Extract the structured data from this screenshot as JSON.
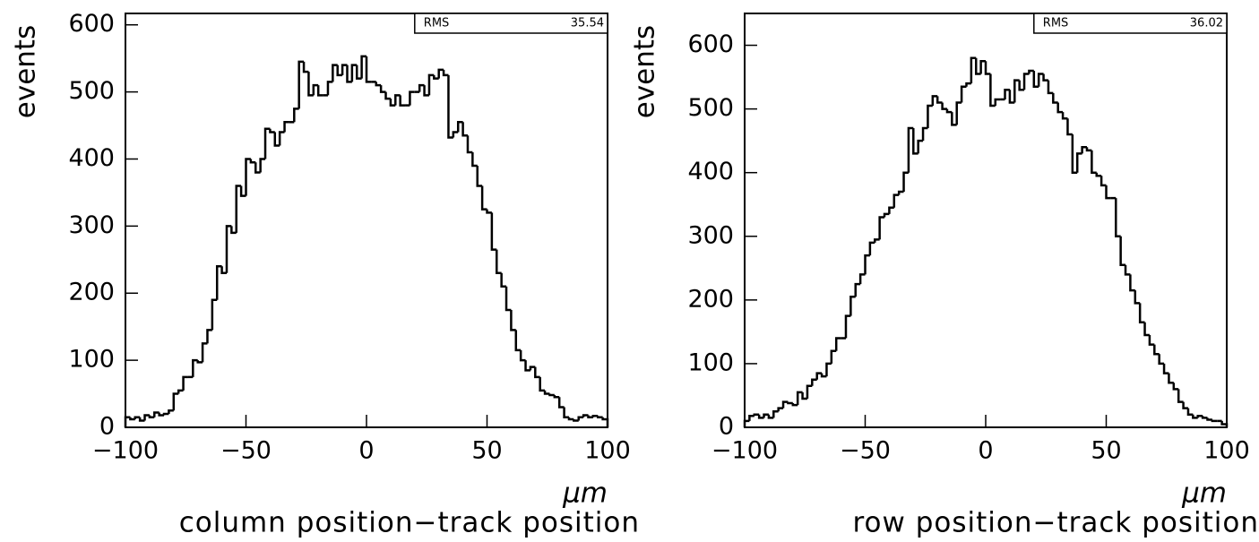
{
  "chart_data": [
    {
      "type": "histogram",
      "xlabel": "column position−track position",
      "xunit": "μm",
      "ylabel": "events",
      "stats": {
        "label": "RMS",
        "value": 35.54
      },
      "bins": [
        -100,
        -98,
        -96,
        -94,
        -92,
        -90,
        -88,
        -86,
        -84,
        -82,
        -80,
        -78,
        -76,
        -74,
        -72,
        -70,
        -68,
        -66,
        -64,
        -62,
        -60,
        -58,
        -56,
        -54,
        -52,
        -50,
        -48,
        -46,
        -44,
        -42,
        -40,
        -38,
        -36,
        -34,
        -32,
        -30,
        -28,
        -26,
        -24,
        -22,
        -20,
        -18,
        -16,
        -14,
        -12,
        -10,
        -8,
        -6,
        -4,
        -2,
        0,
        2,
        4,
        6,
        8,
        10,
        12,
        14,
        16,
        18,
        20,
        22,
        24,
        26,
        28,
        30,
        32,
        34,
        36,
        38,
        40,
        42,
        44,
        46,
        48,
        50,
        52,
        54,
        56,
        58,
        60,
        62,
        64,
        66,
        68,
        70,
        72,
        74,
        76,
        78,
        80,
        82,
        84,
        86,
        88,
        90,
        92,
        94,
        96,
        98,
        100
      ],
      "values": [
        15,
        12,
        15,
        10,
        18,
        15,
        22,
        18,
        20,
        25,
        50,
        55,
        75,
        75,
        100,
        97,
        125,
        145,
        190,
        240,
        230,
        300,
        290,
        360,
        345,
        400,
        395,
        380,
        400,
        445,
        440,
        420,
        440,
        455,
        455,
        475,
        545,
        530,
        495,
        510,
        495,
        495,
        515,
        540,
        525,
        540,
        515,
        540,
        520,
        553,
        515,
        515,
        510,
        500,
        490,
        480,
        495,
        480,
        480,
        500,
        500,
        510,
        495,
        525,
        520,
        533,
        525,
        432,
        440,
        455,
        435,
        410,
        390,
        360,
        325,
        320,
        265,
        230,
        210,
        175,
        145,
        115,
        100,
        85,
        90,
        75,
        55,
        50,
        48,
        45,
        30,
        15,
        12,
        10,
        15,
        18,
        15,
        17,
        15,
        12
      ],
      "color": "#000000",
      "xlim": [
        -100,
        100
      ],
      "xticks": [
        {
          "value": -100,
          "label": "−100"
        },
        {
          "value": -50,
          "label": "−50"
        },
        0,
        50,
        100
      ],
      "ylim": [
        0,
        617
      ],
      "yticks": [
        0,
        100,
        200,
        300,
        400,
        500,
        600
      ]
    },
    {
      "type": "histogram",
      "xlabel": "row position−track position",
      "xunit": "μm",
      "ylabel": "events",
      "stats": {
        "label": "RMS",
        "value": 36.02
      },
      "bins": [
        -100,
        -98,
        -96,
        -94,
        -92,
        -90,
        -88,
        -86,
        -84,
        -82,
        -80,
        -78,
        -76,
        -74,
        -72,
        -70,
        -68,
        -66,
        -64,
        -62,
        -60,
        -58,
        -56,
        -54,
        -52,
        -50,
        -48,
        -46,
        -44,
        -42,
        -40,
        -38,
        -36,
        -34,
        -32,
        -30,
        -28,
        -26,
        -24,
        -22,
        -20,
        -18,
        -16,
        -14,
        -12,
        -10,
        -8,
        -6,
        -4,
        -2,
        0,
        2,
        4,
        6,
        8,
        10,
        12,
        14,
        16,
        18,
        20,
        22,
        24,
        26,
        28,
        30,
        32,
        34,
        36,
        38,
        40,
        42,
        44,
        46,
        48,
        50,
        52,
        54,
        56,
        58,
        60,
        62,
        64,
        66,
        68,
        70,
        72,
        74,
        76,
        78,
        80,
        82,
        84,
        86,
        88,
        90,
        92,
        94,
        96,
        98,
        100
      ],
      "values": [
        10,
        18,
        20,
        15,
        20,
        15,
        25,
        30,
        40,
        38,
        35,
        55,
        45,
        65,
        75,
        85,
        80,
        100,
        120,
        140,
        140,
        175,
        205,
        225,
        240,
        270,
        290,
        295,
        330,
        335,
        345,
        365,
        370,
        400,
        470,
        430,
        450,
        470,
        505,
        520,
        510,
        500,
        495,
        475,
        510,
        535,
        540,
        580,
        555,
        575,
        555,
        505,
        515,
        515,
        530,
        510,
        545,
        530,
        555,
        560,
        535,
        555,
        545,
        525,
        510,
        495,
        485,
        460,
        400,
        430,
        440,
        435,
        400,
        395,
        380,
        360,
        360,
        300,
        255,
        240,
        215,
        195,
        165,
        145,
        130,
        115,
        100,
        85,
        70,
        60,
        40,
        30,
        20,
        15,
        18,
        15,
        12,
        10,
        10,
        5
      ],
      "color": "#000000",
      "xlim": [
        -100,
        100
      ],
      "xticks": [
        {
          "value": -100,
          "label": "−100"
        },
        {
          "value": -50,
          "label": "−50"
        },
        0,
        50,
        100
      ],
      "ylim": [
        0,
        650
      ],
      "yticks": [
        0,
        100,
        200,
        300,
        400,
        500,
        600
      ]
    }
  ]
}
